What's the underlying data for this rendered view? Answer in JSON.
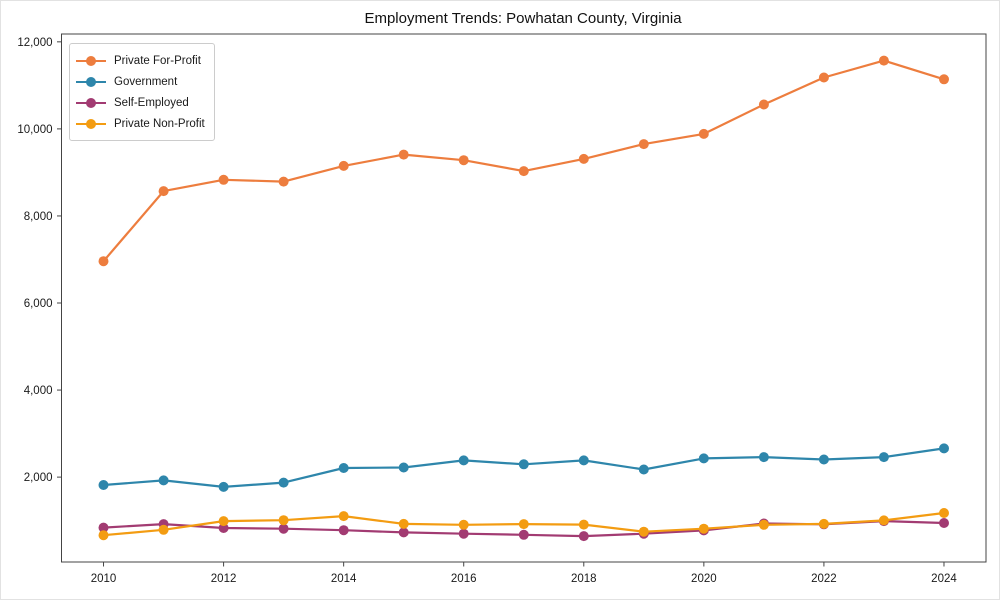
{
  "chart_data": {
    "type": "line",
    "title": "Employment Trends: Powhatan County, Virginia",
    "xlabel": "",
    "ylabel": "",
    "x": [
      2010,
      2011,
      2012,
      2013,
      2014,
      2015,
      2016,
      2017,
      2018,
      2019,
      2020,
      2021,
      2022,
      2023,
      2024
    ],
    "series": [
      {
        "name": "Private For-Profit",
        "color": "#ED7D3E",
        "values": [
          6960,
          8570,
          8830,
          8790,
          9150,
          9410,
          9280,
          9030,
          9310,
          9650,
          9885,
          10560,
          11180,
          11570,
          11140
        ]
      },
      {
        "name": "Government",
        "color": "#2E86AB",
        "values": [
          1820,
          1925,
          1775,
          1875,
          2210,
          2220,
          2385,
          2295,
          2385,
          2175,
          2430,
          2460,
          2405,
          2460,
          2660
        ]
      },
      {
        "name": "Self-Employed",
        "color": "#A23B72",
        "values": [
          840,
          920,
          830,
          815,
          780,
          730,
          700,
          675,
          645,
          700,
          775,
          935,
          915,
          990,
          945
        ]
      },
      {
        "name": "Private Non-Profit",
        "color": "#F39C12",
        "values": [
          665,
          790,
          990,
          1010,
          1105,
          925,
          905,
          920,
          910,
          745,
          815,
          905,
          925,
          1005,
          1175
        ]
      }
    ],
    "x_ticks": [
      2010,
      2012,
      2014,
      2016,
      2018,
      2020,
      2022,
      2024
    ],
    "y_ticks": [
      2000,
      4000,
      6000,
      8000,
      10000,
      12000
    ],
    "y_tick_labels": [
      "2,000",
      "4,000",
      "6,000",
      "8,000",
      "10,000",
      "12,000"
    ],
    "xlim": [
      2009.3,
      2024.7
    ],
    "ylim": [
      50,
      12180
    ],
    "grid": false,
    "legend_position": "upper left"
  }
}
